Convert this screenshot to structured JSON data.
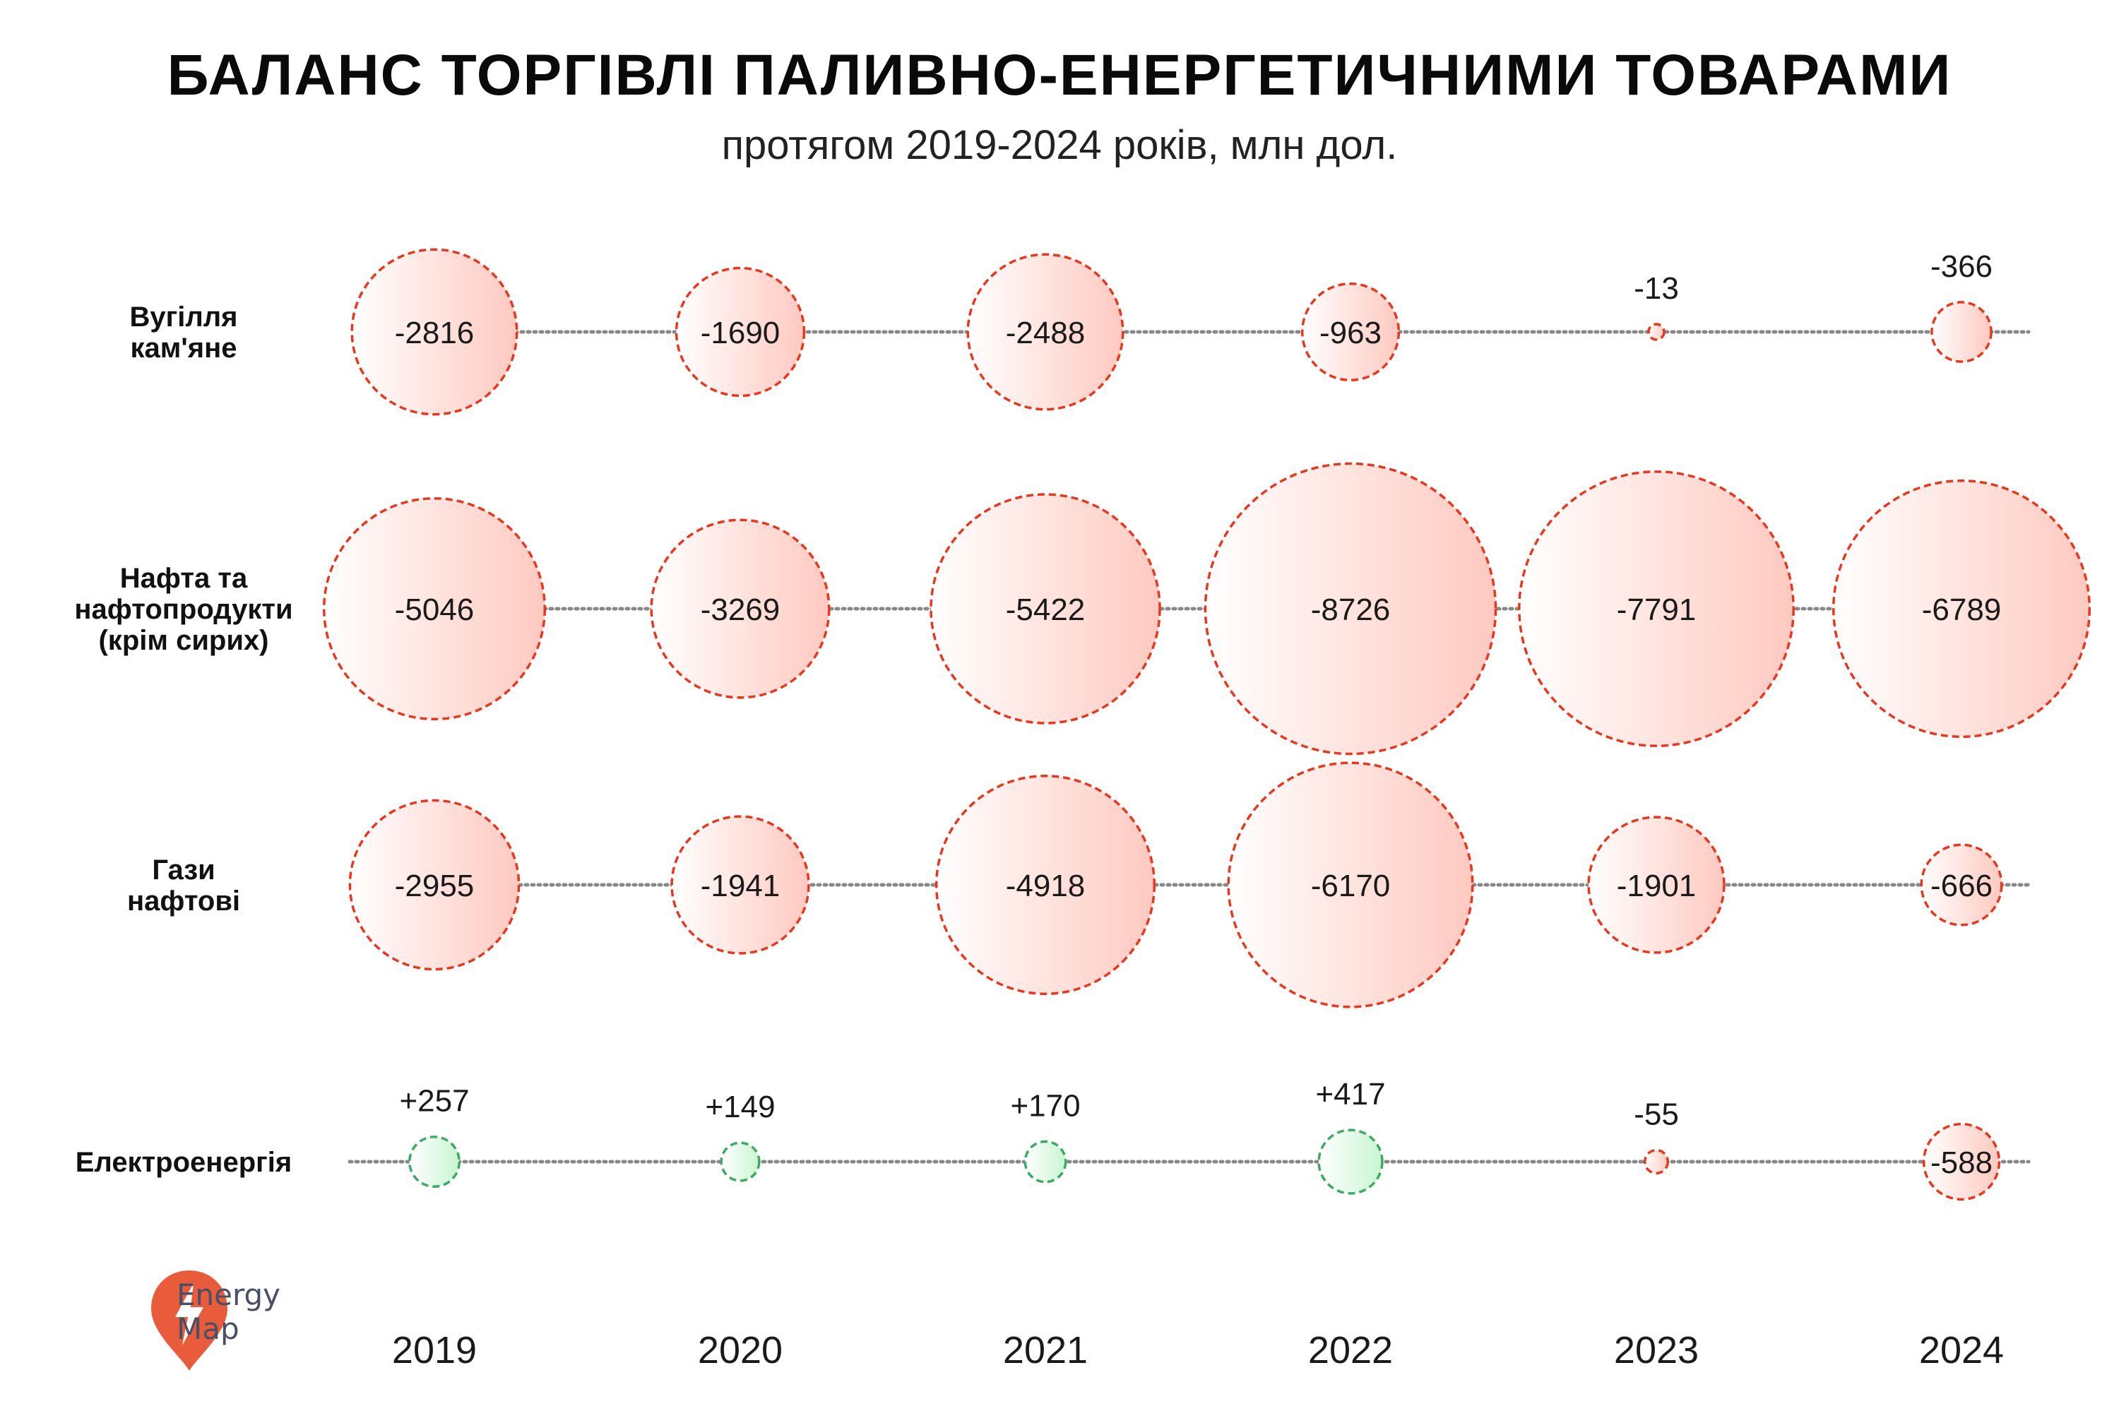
{
  "chart_data": {
    "type": "bubble",
    "title": "БАЛАНС ТОРГІВЛІ ПАЛИВНО-ЕНЕРГЕТИЧНИМИ ТОВАРАМИ",
    "subtitle": "протягом 2019-2024 років, млн дол.",
    "years": [
      "2019",
      "2020",
      "2021",
      "2022",
      "2023",
      "2024"
    ],
    "series": [
      {
        "name": "Вугілля кам'яне",
        "label_lines": [
          "Вугілля",
          "кам'яне"
        ],
        "values": [
          -2816,
          -1690,
          -2488,
          -963,
          -13,
          -366
        ],
        "labels": [
          "-2816",
          "-1690",
          "-2488",
          "-963",
          "-13",
          "-366"
        ]
      },
      {
        "name": "Нафта та нафтопродукти (крім сирих)",
        "label_lines": [
          "Нафта та",
          "нафтопродукти",
          "(крім сирих)"
        ],
        "values": [
          -5046,
          -3269,
          -5422,
          -8726,
          -7791,
          -6789
        ],
        "labels": [
          "-5046",
          "-3269",
          "-5422",
          "-8726",
          "-7791",
          "-6789"
        ]
      },
      {
        "name": "Гази нафтові",
        "label_lines": [
          "Гази",
          "нафтові"
        ],
        "values": [
          -2955,
          -1941,
          -4918,
          -6170,
          -1901,
          -666
        ],
        "labels": [
          "-2955",
          "-1941",
          "-4918",
          "-6170",
          "-1901",
          "-666"
        ]
      },
      {
        "name": "Електроенергія",
        "label_lines": [
          "Електроенергія"
        ],
        "values": [
          257,
          149,
          170,
          417,
          -55,
          -588
        ],
        "labels": [
          "+257",
          "+149",
          "+170",
          "+417",
          "-55",
          "-588"
        ]
      }
    ],
    "colors": {
      "negative_stroke": "#e8371f",
      "negative_fill": "#ffc9c0",
      "positive_stroke": "#3faa63",
      "positive_fill": "#c9f5d2",
      "connector": "#888888"
    }
  },
  "logo": {
    "line1": "Energy",
    "line2": "Map",
    "color": "#e85c3c"
  }
}
